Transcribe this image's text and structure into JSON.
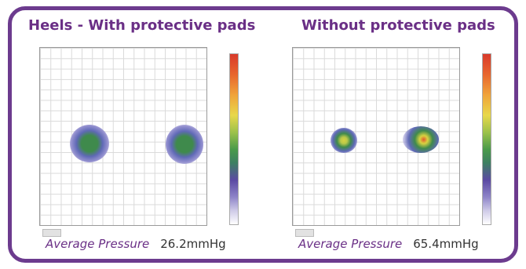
{
  "left": {
    "title": "Heels - With protective pads",
    "avg_label": "Average Pressure",
    "avg_value": "26.2mmHg"
  },
  "right": {
    "title": "Without protective pads",
    "avg_label": "Average Pressure",
    "avg_value": "65.4mmHg"
  },
  "colors": {
    "frame": "#6c3b8e",
    "title": "#6a2f86"
  }
}
